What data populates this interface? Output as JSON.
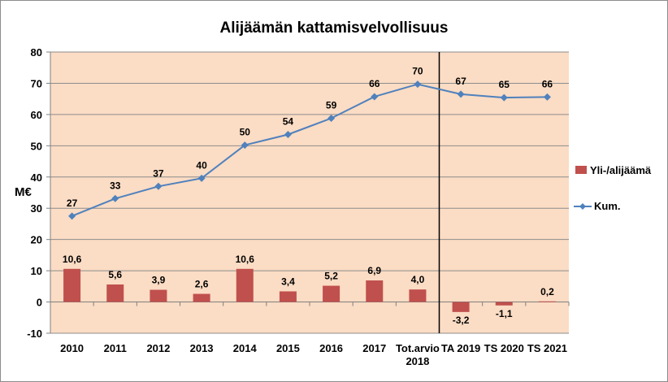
{
  "chart_data": {
    "type": "bar",
    "title": "Alijäämän kattamisvelvollisuus",
    "ylabel": "M€",
    "xlabel": "",
    "ylim": [
      -10,
      80
    ],
    "yticks": [
      -10,
      0,
      10,
      20,
      30,
      40,
      50,
      60,
      70,
      80
    ],
    "categories": [
      "2010",
      "2011",
      "2012",
      "2013",
      "2014",
      "2015",
      "2016",
      "2017",
      "Tot.arvio 2018",
      "TA 2019",
      "TS 2020",
      "TS 2021"
    ],
    "series": [
      {
        "name": "Yli-/alijäämä",
        "type": "bar",
        "color": "#c0504d",
        "values": [
          10.6,
          5.6,
          3.9,
          2.6,
          10.6,
          3.4,
          5.2,
          6.9,
          4.0,
          -3.2,
          -1.1,
          0.2
        ],
        "labels": [
          "10,6",
          "5,6",
          "3,9",
          "2,6",
          "10,6",
          "3,4",
          "5,2",
          "6,9",
          "4,0",
          "-3,2",
          "-1,1",
          "0,2"
        ]
      },
      {
        "name": "Kum.",
        "type": "line",
        "color": "#4f81bd",
        "marker": "diamond",
        "values": [
          27.5,
          33.1,
          37.0,
          39.6,
          50.2,
          53.6,
          58.8,
          65.7,
          69.7,
          66.5,
          65.4,
          65.6
        ],
        "labels": [
          "27",
          "33",
          "37",
          "40",
          "50",
          "54",
          "59",
          "66",
          "70",
          "67",
          "65",
          "66"
        ]
      }
    ],
    "background": "#fbdcc4",
    "grid": "horizontal",
    "divider_after_category": "Tot.arvio 2018",
    "legend_position": "right"
  }
}
